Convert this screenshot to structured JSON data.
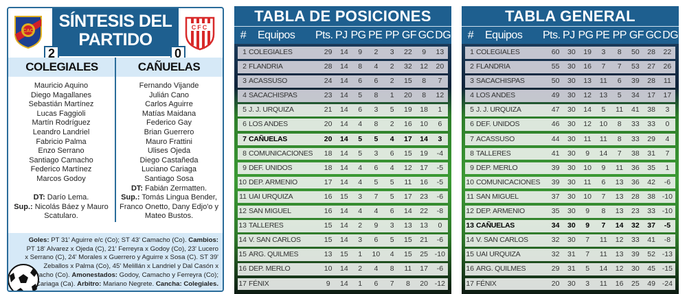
{
  "synthesis": {
    "title_line1": "SÍNTESIS DEL",
    "title_line2": "PARTIDO",
    "home": {
      "name": "COLEGIALES",
      "score": "2",
      "crest_text": "CAC",
      "players": [
        "Mauricio Aquino",
        "Diego Magallanes",
        "Sebastián Martínez",
        "Lucas Faggioli",
        "Martín Rodríguez",
        "Leandro Landriel",
        "Fabricio Palma",
        "Enzo Serrano",
        "Santiago Camacho",
        "Federico Martínez",
        "Marcos Godoy"
      ],
      "dt_label": "DT:",
      "dt": " Darío Lema.",
      "sup_label": "Sup.:",
      "sup": " Nicolás Báez y Mauro Scatularo."
    },
    "away": {
      "name": "CAÑUELAS",
      "score": "0",
      "crest_text": "CFC",
      "players": [
        "Fernando Vijande",
        "Julián Cano",
        "Carlos Aguirre",
        "Matías Maidana",
        "Federico Gay",
        "Brian Guerrero",
        "Mauro Frattini",
        "Ulises Ojeda",
        "Diego Castañeda",
        "Luciano Cariaga",
        "Santiago Sosa"
      ],
      "dt_label": "DT:",
      "dt": " Fabián Zermatten.",
      "sup_label": "Sup.:",
      "sup": " Tomás Lingua Bender, Franco Onetto, Dany Edjo'o y Mateo Bustos."
    },
    "details": {
      "goles_label": "Goles:",
      "goles": " PT 31' Aguirre e/c (Co); ST 43' Camacho (Co).",
      "cambios_label": "Cambios:",
      "cambios": " PT 18' Alvarez x Ojeda (C), 21' Ferreyra x Godoy (Co), 23' Lucero x Serrano (C), 24' Morales x Guerrero y Aguirre x Sosa (C). ST 39' Zeballos x Palma (Co), 45' Melillán x Landriel y Dal Casón x Camacho (Co).",
      "amon_label": "Amonestados:",
      "amon": " Godoy, Camacho y Ferreyra (Co); Cariaga (Ca).",
      "arbitro_label": "Arbitro:",
      "arbitro": " Mariano Negrete.",
      "cancha_label": "Cancha:",
      "cancha": " Colegiales."
    }
  },
  "columns": [
    "#",
    "Equipos",
    "Pts.",
    "PJ",
    "PG",
    "PE",
    "PP",
    "GF",
    "GC",
    "DG"
  ],
  "posiciones": {
    "title": "TABLA DE POSICIONES",
    "highlight": "CAÑUELAS",
    "rows": [
      [
        1,
        "COLEGIALES",
        29,
        14,
        9,
        2,
        3,
        22,
        9,
        13
      ],
      [
        2,
        "FLANDRIA",
        28,
        14,
        8,
        4,
        2,
        32,
        12,
        20
      ],
      [
        3,
        "ACASSUSO",
        24,
        14,
        6,
        6,
        2,
        15,
        8,
        7
      ],
      [
        4,
        "SACACHISPAS",
        23,
        14,
        5,
        8,
        1,
        20,
        8,
        12
      ],
      [
        5,
        "J. J. URQUIZA",
        21,
        14,
        6,
        3,
        5,
        19,
        18,
        1
      ],
      [
        6,
        "LOS ANDES",
        20,
        14,
        4,
        8,
        2,
        16,
        10,
        6
      ],
      [
        7,
        "CAÑUELAS",
        20,
        14,
        5,
        5,
        4,
        17,
        14,
        3
      ],
      [
        8,
        "COMUNICACIONES",
        18,
        14,
        5,
        3,
        6,
        15,
        19,
        -4
      ],
      [
        9,
        "DEF. UNIDOS",
        18,
        14,
        4,
        6,
        4,
        12,
        17,
        -5
      ],
      [
        10,
        "DEP. ARMENIO",
        17,
        14,
        4,
        5,
        5,
        11,
        16,
        -5
      ],
      [
        11,
        "UAI URQUIZA",
        16,
        15,
        3,
        7,
        5,
        17,
        23,
        -6
      ],
      [
        12,
        "SAN MIGUEL",
        16,
        14,
        4,
        4,
        6,
        14,
        22,
        -8
      ],
      [
        13,
        "TALLERES",
        15,
        14,
        2,
        9,
        3,
        13,
        13,
        0
      ],
      [
        14,
        "V. SAN CARLOS",
        15,
        14,
        3,
        6,
        5,
        15,
        21,
        -6
      ],
      [
        15,
        "ARG. QUILMES",
        13,
        15,
        1,
        10,
        4,
        15,
        25,
        -10
      ],
      [
        16,
        "DEP. MERLO",
        10,
        14,
        2,
        4,
        8,
        11,
        17,
        -6
      ],
      [
        17,
        "FÉNIX",
        9,
        14,
        1,
        6,
        7,
        8,
        20,
        -12
      ]
    ]
  },
  "general": {
    "title": "TABLA GENERAL",
    "highlight": "CAÑUELAS",
    "rows": [
      [
        1,
        "COLEGIALES",
        60,
        30,
        19,
        3,
        8,
        50,
        28,
        22
      ],
      [
        2,
        "FLANDRIA",
        55,
        30,
        16,
        7,
        7,
        53,
        27,
        26
      ],
      [
        3,
        "SACACHISPAS",
        50,
        30,
        13,
        11,
        6,
        39,
        28,
        11
      ],
      [
        4,
        "LOS ANDES",
        49,
        30,
        12,
        13,
        5,
        34,
        17,
        17
      ],
      [
        5,
        "J. J. URQUIZA",
        47,
        30,
        14,
        5,
        11,
        41,
        38,
        3
      ],
      [
        6,
        "DEF. UNIDOS",
        46,
        30,
        12,
        10,
        8,
        33,
        33,
        0
      ],
      [
        7,
        "ACASSUSO",
        44,
        30,
        11,
        11,
        8,
        33,
        29,
        4
      ],
      [
        8,
        "TALLERES",
        41,
        30,
        9,
        14,
        7,
        38,
        31,
        7
      ],
      [
        9,
        "DEP. MERLO",
        39,
        30,
        10,
        9,
        11,
        36,
        35,
        1
      ],
      [
        10,
        "COMUNICACIONES",
        39,
        30,
        11,
        6,
        13,
        36,
        42,
        -6
      ],
      [
        11,
        "SAN MIGUEL",
        37,
        30,
        10,
        7,
        13,
        28,
        38,
        -10
      ],
      [
        12,
        "DEP. ARMENIO",
        35,
        30,
        9,
        8,
        13,
        23,
        33,
        -10
      ],
      [
        13,
        "CAÑUELAS",
        34,
        30,
        9,
        7,
        14,
        32,
        37,
        -5
      ],
      [
        14,
        "V. SAN CARLOS",
        32,
        30,
        7,
        11,
        12,
        33,
        41,
        -8
      ],
      [
        15,
        "UAI URQUIZA",
        32,
        31,
        7,
        11,
        13,
        39,
        52,
        -13
      ],
      [
        16,
        "ARG. QUILMES",
        29,
        31,
        5,
        14,
        12,
        30,
        45,
        -15
      ],
      [
        17,
        "FÉNIX",
        20,
        30,
        3,
        11,
        16,
        25,
        49,
        -24
      ]
    ]
  },
  "colors": {
    "header_blue": "#1e5f8f",
    "light_blue": "#d6e9f7"
  }
}
